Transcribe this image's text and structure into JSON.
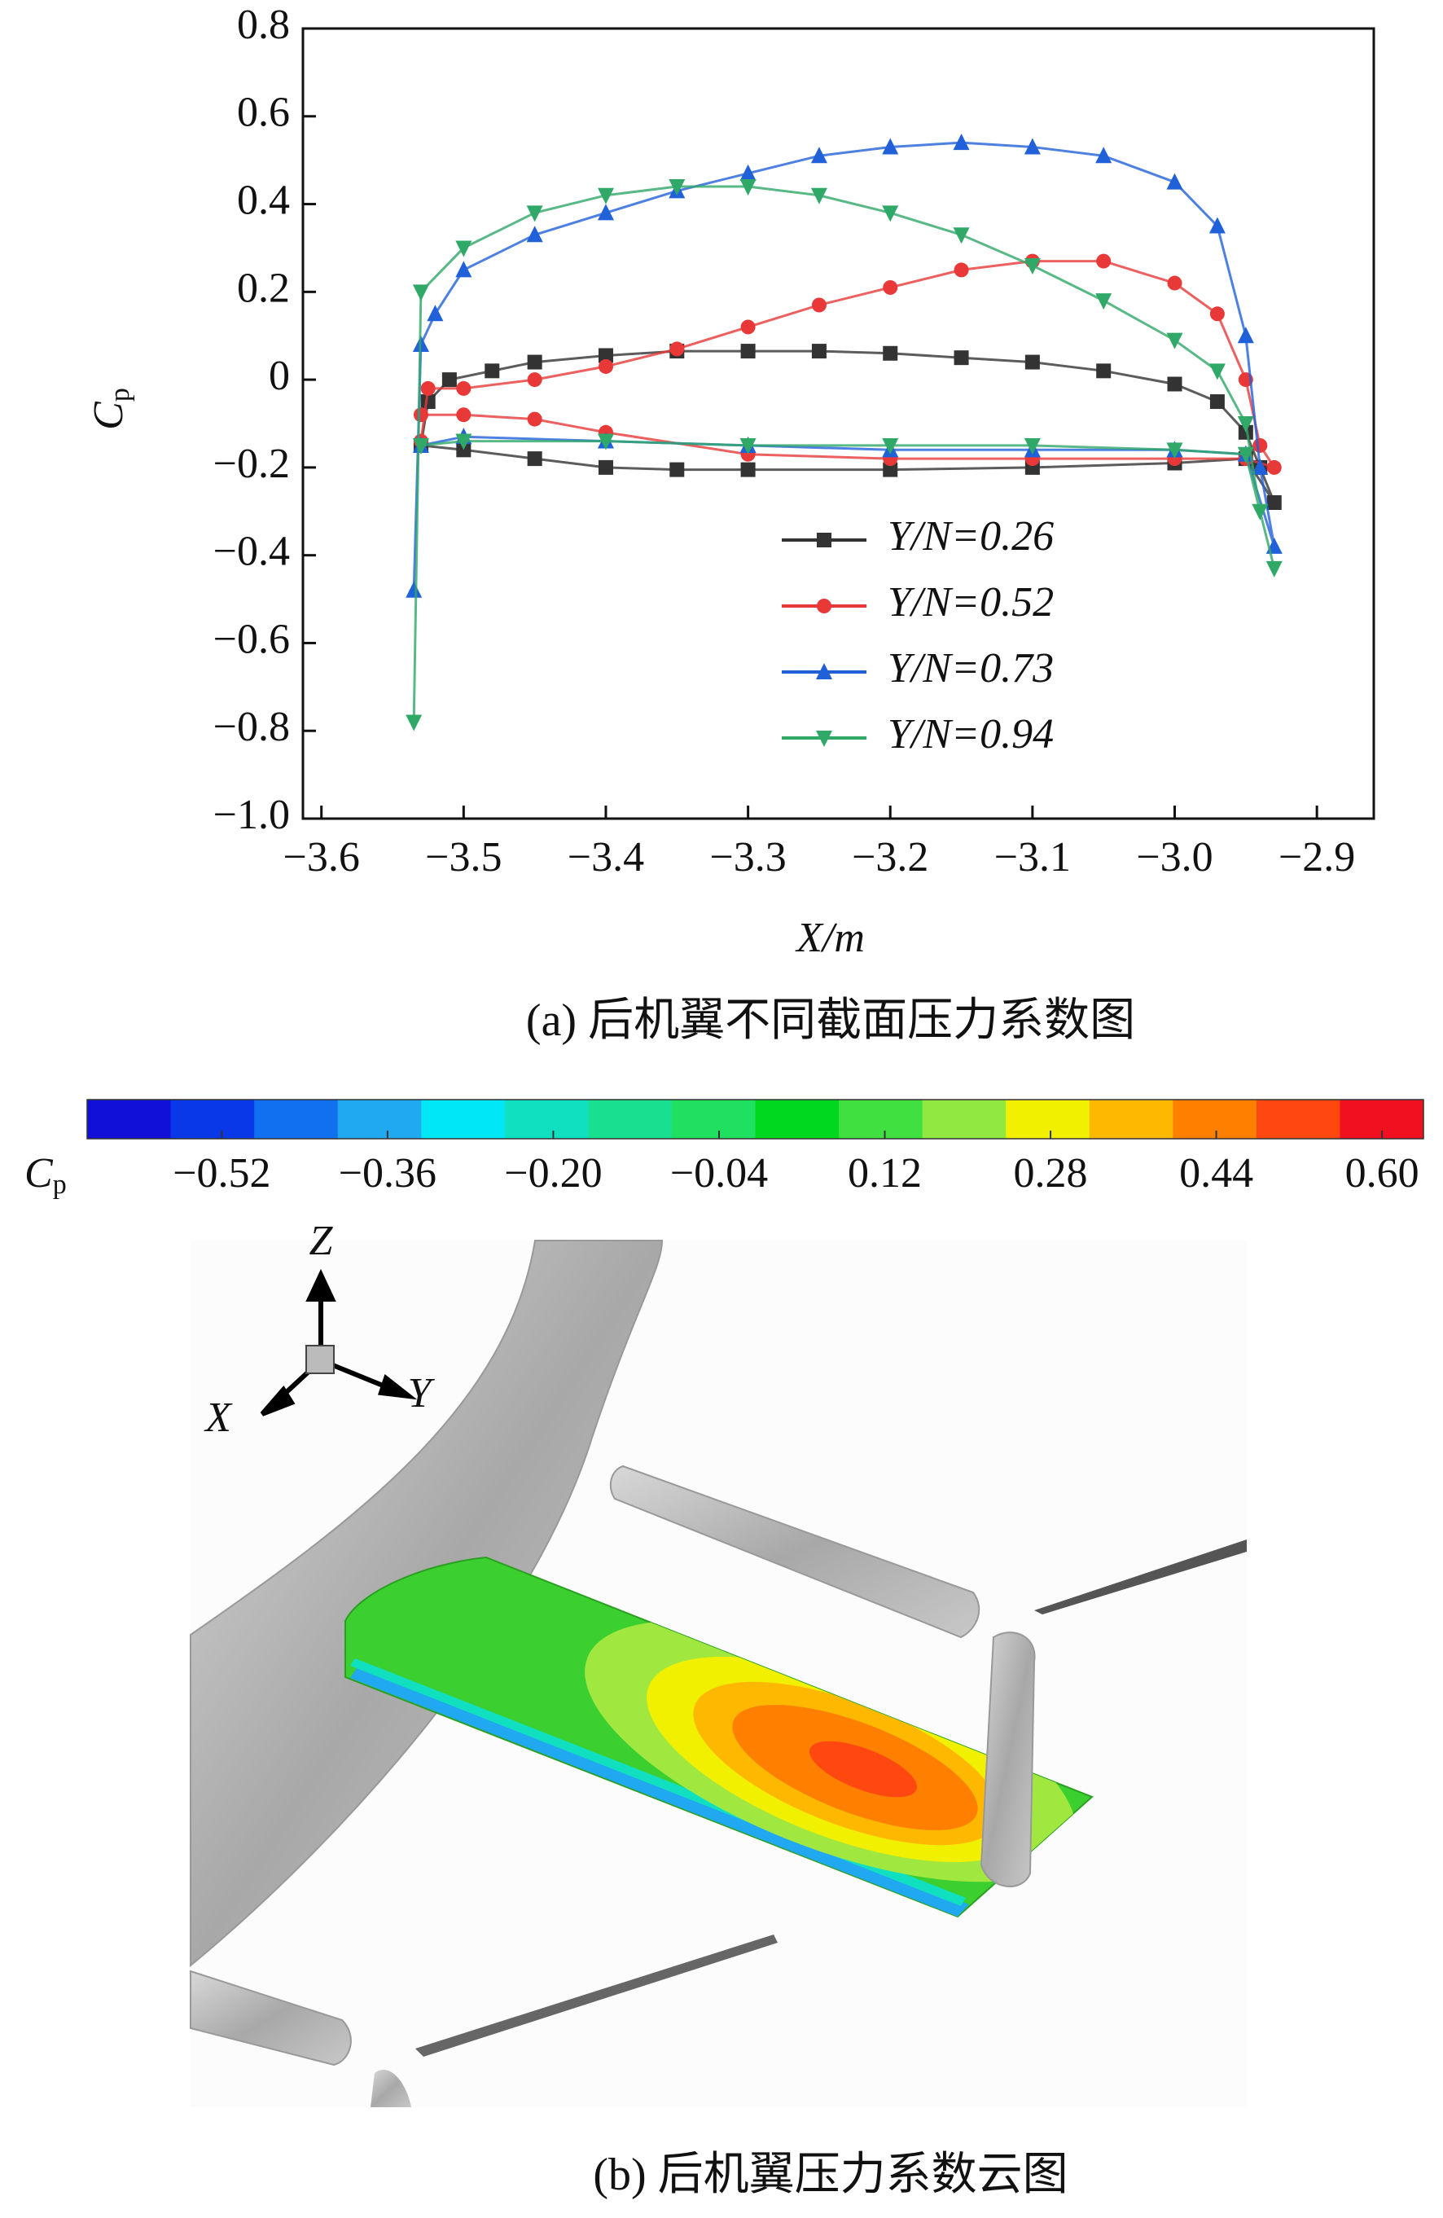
{
  "chart_data": [
    {
      "type": "line",
      "xlabel": "X/m",
      "ylabel_symbol": "C",
      "ylabel_subscript": "p",
      "caption": "(a) 后机翼不同截面压力系数图",
      "xlim": [
        -3.613,
        -2.86
      ],
      "ylim": [
        -1.0,
        0.8
      ],
      "xticks": [
        {
          "value": -3.6,
          "label": "−3.6"
        },
        {
          "value": -3.5,
          "label": "−3.5"
        },
        {
          "value": -3.4,
          "label": "−3.4"
        },
        {
          "value": -3.3,
          "label": "−3.3"
        },
        {
          "value": -3.2,
          "label": "−3.2"
        },
        {
          "value": -3.1,
          "label": "−3.1"
        },
        {
          "value": -3.0,
          "label": "−3.0"
        },
        {
          "value": -2.9,
          "label": "−2.9"
        }
      ],
      "yticks": [
        {
          "value": -1.0,
          "label": "−1.0"
        },
        {
          "value": -0.8,
          "label": "−0.8"
        },
        {
          "value": -0.6,
          "label": "−0.6"
        },
        {
          "value": -0.4,
          "label": "−0.4"
        },
        {
          "value": -0.2,
          "label": "−0.2"
        },
        0,
        0.2,
        0.4,
        0.6,
        0.8
      ],
      "legend": "lower right",
      "series": [
        {
          "name": "Y/N=0.26",
          "color": "#333333",
          "marker": "square",
          "x": [
            -3.53,
            -3.525,
            -3.51,
            -3.48,
            -3.45,
            -3.4,
            -3.35,
            -3.3,
            -3.25,
            -3.2,
            -3.15,
            -3.1,
            -3.05,
            -3.0,
            -2.97,
            -2.95,
            -2.94,
            -2.93,
            -2.95,
            -3.0,
            -3.1,
            -3.2,
            -3.3,
            -3.35,
            -3.4,
            -3.45,
            -3.5,
            -3.53
          ],
          "values": [
            -0.15,
            -0.05,
            0.0,
            0.02,
            0.04,
            0.055,
            0.065,
            0.065,
            0.065,
            0.06,
            0.05,
            0.04,
            0.02,
            -0.01,
            -0.05,
            -0.12,
            -0.2,
            -0.28,
            -0.18,
            -0.19,
            -0.2,
            -0.205,
            -0.205,
            -0.205,
            -0.2,
            -0.18,
            -0.16,
            -0.15
          ]
        },
        {
          "name": "Y/N=0.52",
          "color": "#e83838",
          "marker": "circle",
          "x": [
            -3.53,
            -3.525,
            -3.5,
            -3.45,
            -3.4,
            -3.35,
            -3.3,
            -3.25,
            -3.2,
            -3.15,
            -3.1,
            -3.05,
            -3.0,
            -2.97,
            -2.95,
            -2.94,
            -2.93,
            -2.95,
            -3.0,
            -3.1,
            -3.2,
            -3.3,
            -3.4,
            -3.45,
            -3.5,
            -3.53
          ],
          "values": [
            -0.14,
            -0.02,
            -0.02,
            0.0,
            0.03,
            0.07,
            0.12,
            0.17,
            0.21,
            0.25,
            0.27,
            0.27,
            0.22,
            0.15,
            0.0,
            -0.15,
            -0.2,
            -0.18,
            -0.18,
            -0.18,
            -0.18,
            -0.17,
            -0.12,
            -0.09,
            -0.08,
            -0.08
          ]
        },
        {
          "name": "Y/N=0.73",
          "color": "#2060d8",
          "marker": "triangle-up",
          "x": [
            -3.535,
            -3.53,
            -3.52,
            -3.5,
            -3.45,
            -3.4,
            -3.35,
            -3.3,
            -3.25,
            -3.2,
            -3.15,
            -3.1,
            -3.05,
            -3.0,
            -2.97,
            -2.95,
            -2.94,
            -2.93,
            -2.95,
            -3.0,
            -3.1,
            -3.2,
            -3.3,
            -3.4,
            -3.5,
            -3.53
          ],
          "values": [
            -0.48,
            0.08,
            0.15,
            0.25,
            0.33,
            0.38,
            0.43,
            0.47,
            0.51,
            0.53,
            0.54,
            0.53,
            0.51,
            0.45,
            0.35,
            0.1,
            -0.2,
            -0.38,
            -0.17,
            -0.16,
            -0.16,
            -0.16,
            -0.15,
            -0.14,
            -0.13,
            -0.15
          ]
        },
        {
          "name": "Y/N=0.94",
          "color": "#30a868",
          "marker": "triangle-down",
          "x": [
            -3.535,
            -3.53,
            -3.5,
            -3.45,
            -3.4,
            -3.35,
            -3.3,
            -3.25,
            -3.2,
            -3.15,
            -3.1,
            -3.05,
            -3.0,
            -2.97,
            -2.95,
            -2.94,
            -2.93,
            -2.95,
            -3.0,
            -3.1,
            -3.2,
            -3.3,
            -3.4,
            -3.5,
            -3.53
          ],
          "values": [
            -0.78,
            0.2,
            0.3,
            0.38,
            0.42,
            0.44,
            0.44,
            0.42,
            0.38,
            0.33,
            0.26,
            0.18,
            0.09,
            0.02,
            -0.1,
            -0.3,
            -0.43,
            -0.17,
            -0.16,
            -0.15,
            -0.15,
            -0.15,
            -0.14,
            -0.14,
            -0.15
          ]
        }
      ]
    },
    {
      "type": "colorbar",
      "label_symbol": "C",
      "label_subscript": "p",
      "clim": [
        -0.65,
        0.64
      ],
      "ticks": [
        {
          "value": -0.52,
          "label": "−0.52"
        },
        {
          "value": -0.36,
          "label": "−0.36"
        },
        {
          "value": -0.2,
          "label": "−0.20"
        },
        {
          "value": -0.04,
          "label": "−0.04"
        },
        0.12,
        0.28,
        0.44,
        {
          "value": 0.6,
          "label": "0.60"
        }
      ],
      "colors": [
        "#1010d8",
        "#0838e8",
        "#1070f0",
        "#20a8f0",
        "#00e8f8",
        "#10e0c0",
        "#18e090",
        "#20e060",
        "#00d820",
        "#40e040",
        "#90e840",
        "#f0f000",
        "#ffb800",
        "#ff8000",
        "#ff4810",
        "#f01020"
      ]
    }
  ],
  "figure": {
    "axis_labels": {
      "z": "Z",
      "x": "X",
      "y": "Y"
    },
    "caption": "(b) 后机翼压力系数云图"
  }
}
